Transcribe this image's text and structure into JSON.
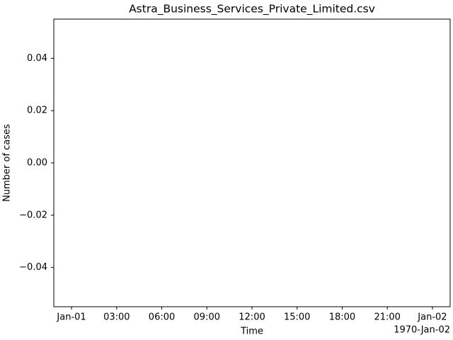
{
  "chart_data": {
    "type": "line",
    "title": "Astra_Business_Services_Private_Limited.csv",
    "x_label": "Time",
    "y_label": "Number of cases",
    "x_offset_label": "1970-Jan-02",
    "series": [],
    "xlim": [
      -1.18,
      25.18
    ],
    "xticks": [
      {
        "value": 0,
        "label": "Jan-01"
      },
      {
        "value": 3,
        "label": "03:00"
      },
      {
        "value": 6,
        "label": "06:00"
      },
      {
        "value": 9,
        "label": "09:00"
      },
      {
        "value": 12,
        "label": "12:00"
      },
      {
        "value": 15,
        "label": "15:00"
      },
      {
        "value": 18,
        "label": "18:00"
      },
      {
        "value": 21,
        "label": "21:00"
      },
      {
        "value": 24,
        "label": "Jan-02"
      }
    ],
    "ylim": [
      -0.055,
      0.055
    ],
    "yticks": [
      {
        "value": -0.04,
        "label": "−0.04"
      },
      {
        "value": -0.02,
        "label": "−0.02"
      },
      {
        "value": 0,
        "label": "0.00"
      },
      {
        "value": 0.02,
        "label": "0.02"
      },
      {
        "value": 0.04,
        "label": "0.04"
      }
    ],
    "grid": false
  }
}
